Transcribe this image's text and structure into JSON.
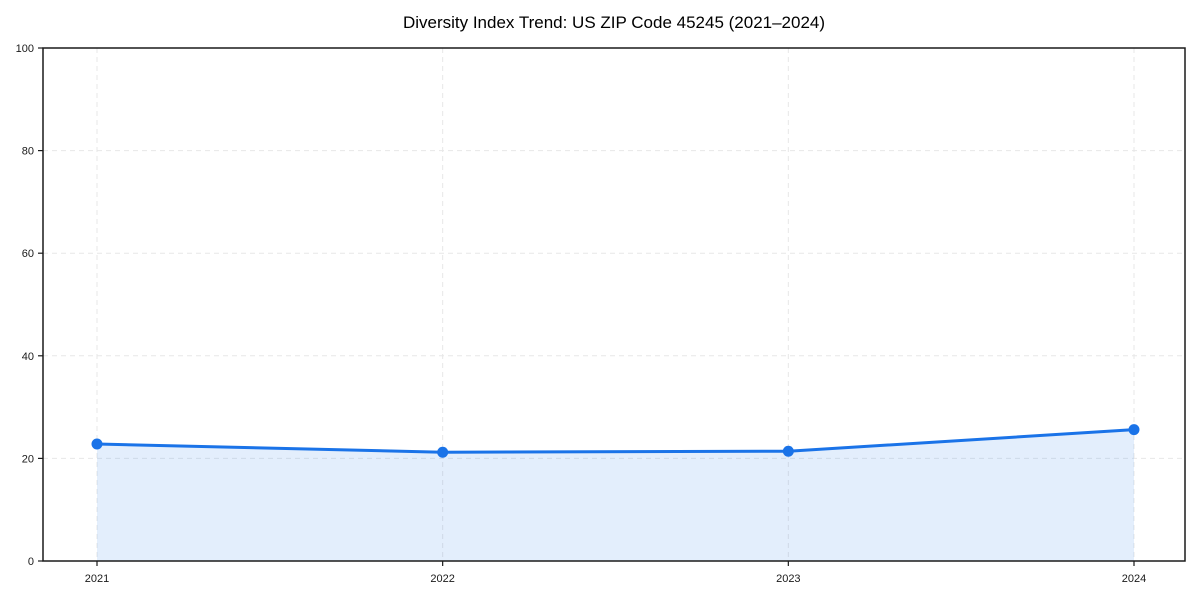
{
  "chart_data": {
    "type": "line",
    "title": "Diversity Index Trend: US ZIP Code 45245 (2021–2024)",
    "categories": [
      "2021",
      "2022",
      "2023",
      "2024"
    ],
    "values": [
      22.8,
      21.2,
      21.4,
      25.6
    ],
    "xlabel": "",
    "ylabel": "",
    "ylim": [
      0,
      100
    ],
    "yticks": [
      0,
      20,
      40,
      60,
      80,
      100
    ],
    "grid": true,
    "grid_style": "dashed",
    "legend_position": "none",
    "area_fill": true,
    "markers": true,
    "colors": {
      "line": "#1a73e8",
      "marker": "#1a73e8",
      "area_fill": "#1a73e8",
      "area_fill_opacity": 0.12,
      "grid": "#e7e7e7",
      "spine": "#1a1a1a",
      "text": "#1a1a1a",
      "background": "#ffffff"
    }
  }
}
